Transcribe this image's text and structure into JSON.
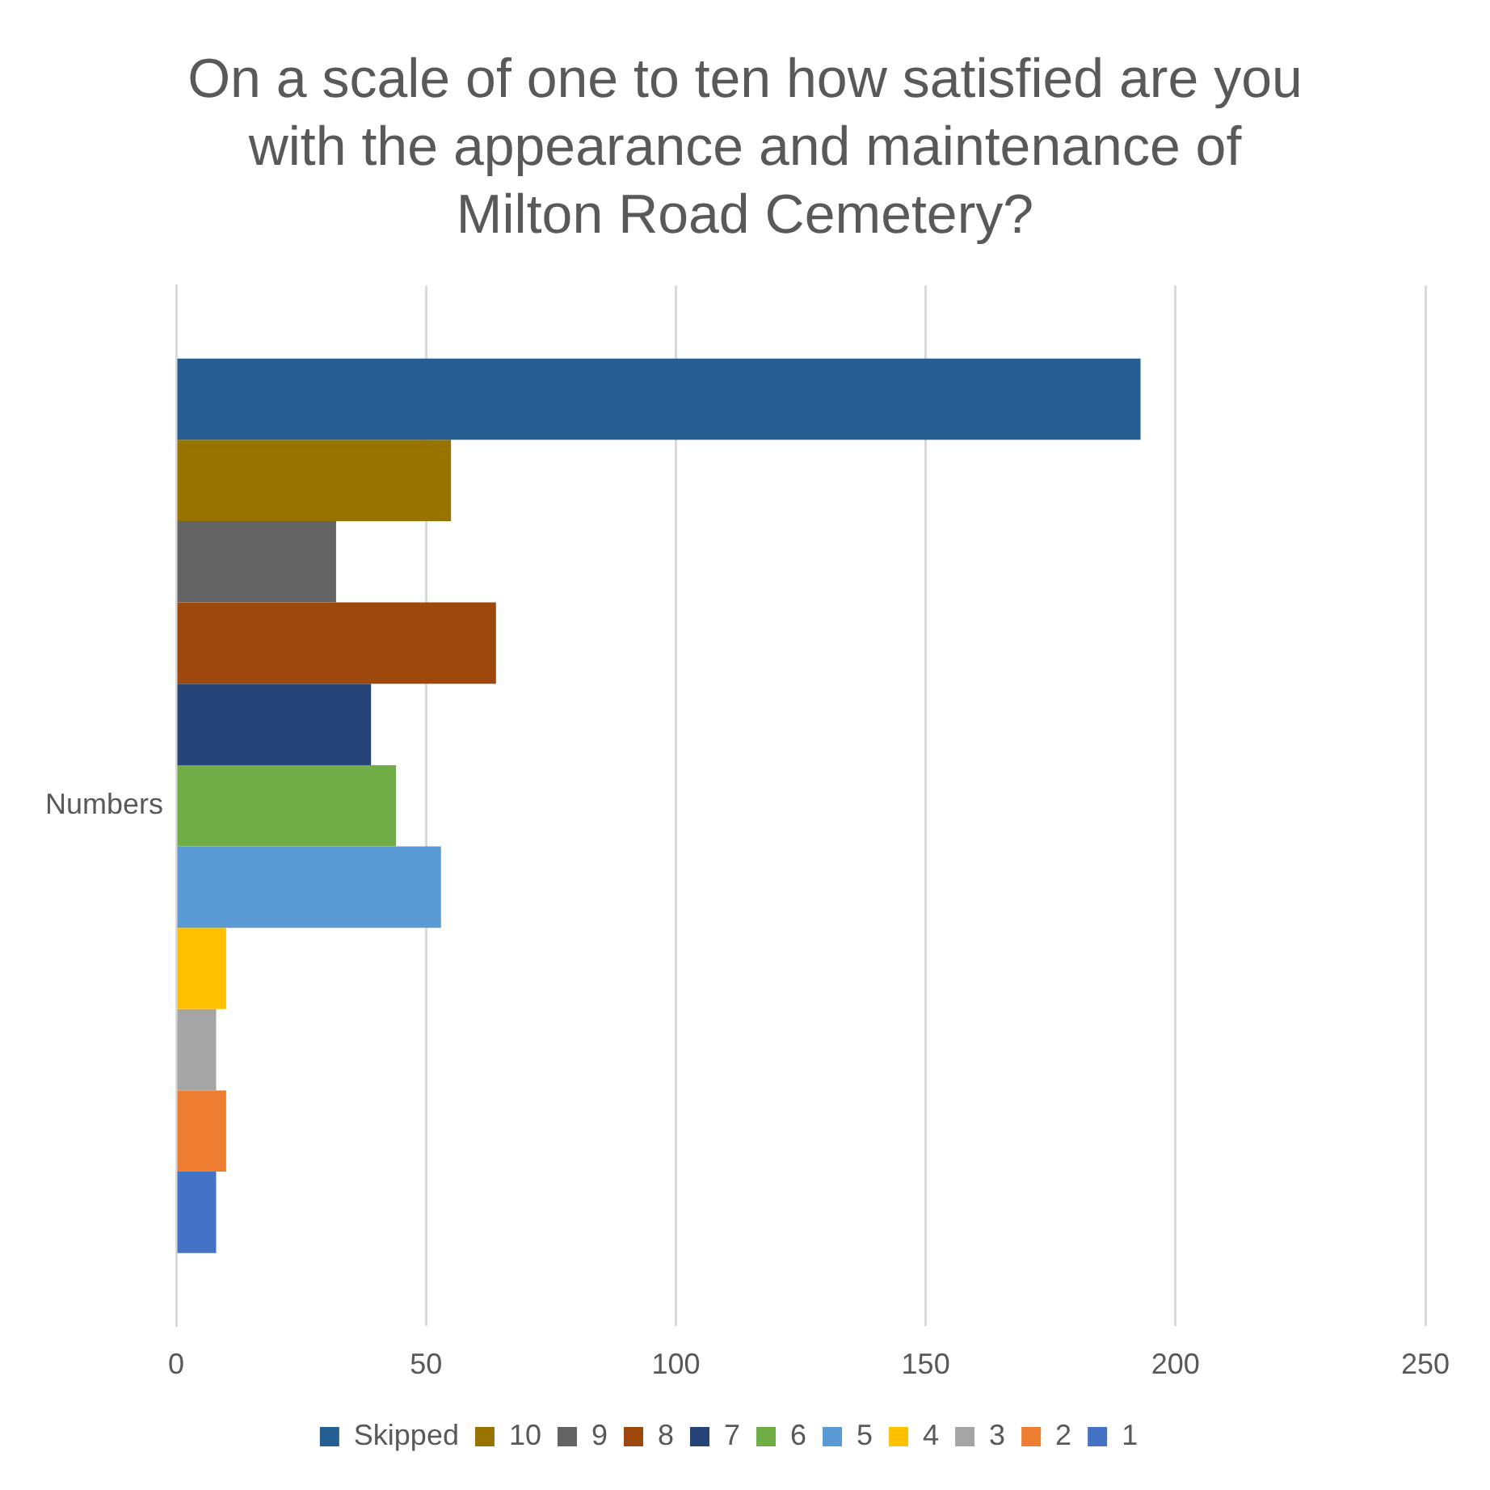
{
  "chart_data": {
    "type": "bar",
    "orientation": "horizontal",
    "title": "On a scale of one to ten how satisfied are you with the appearance and maintenance of Milton Road Cemetery?",
    "categories": [
      "Numbers"
    ],
    "series": [
      {
        "name": "Skipped",
        "color": "#255e91",
        "values": [
          193
        ]
      },
      {
        "name": "10",
        "color": "#997300",
        "values": [
          55
        ]
      },
      {
        "name": "9",
        "color": "#636363",
        "values": [
          32
        ]
      },
      {
        "name": "8",
        "color": "#9e480e",
        "values": [
          64
        ]
      },
      {
        "name": "7",
        "color": "#264478",
        "values": [
          39
        ]
      },
      {
        "name": "6",
        "color": "#70ad47",
        "values": [
          44
        ]
      },
      {
        "name": "5",
        "color": "#5b9bd5",
        "values": [
          53
        ]
      },
      {
        "name": "4",
        "color": "#ffc000",
        "values": [
          10
        ]
      },
      {
        "name": "3",
        "color": "#a5a5a5",
        "values": [
          8
        ]
      },
      {
        "name": "2",
        "color": "#ed7d31",
        "values": [
          10
        ]
      },
      {
        "name": "1",
        "color": "#4472c4",
        "values": [
          8
        ]
      }
    ],
    "xlim": [
      0,
      250
    ],
    "xticks": [
      0,
      50,
      100,
      150,
      200,
      250
    ],
    "grid": "x",
    "legend": "bottom"
  }
}
